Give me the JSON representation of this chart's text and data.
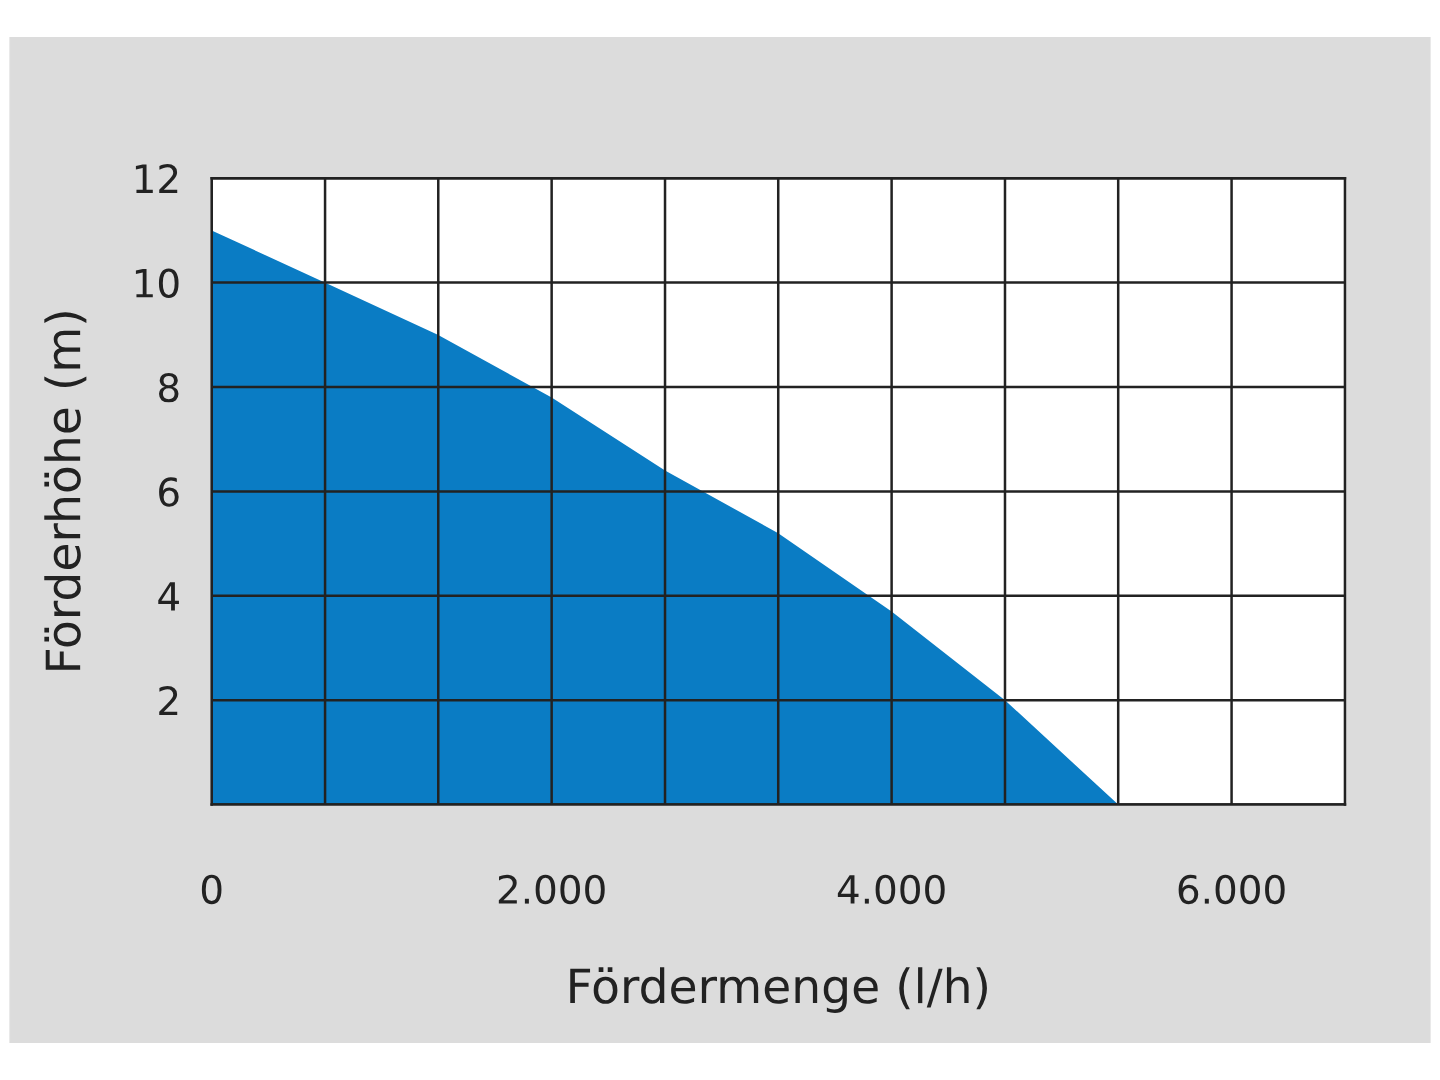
{
  "chart_data": {
    "type": "area",
    "xlabel": "Fördermenge (l/h)",
    "ylabel": "Förderhöhe (m)",
    "x": [
      0,
      665,
      1330,
      2000,
      2667,
      3333,
      4000,
      4667,
      5333
    ],
    "series": [
      {
        "color": "#0a7cc4",
        "values": [
          11,
          10,
          9,
          7.8,
          6.4,
          5.2,
          3.7,
          2,
          0
        ]
      }
    ],
    "xlim": [
      0,
      6667
    ],
    "ylim": [
      0,
      12
    ],
    "xticks": [
      {
        "value": 0,
        "label": "0"
      },
      {
        "value": 667,
        "label": null
      },
      {
        "value": 1333,
        "label": null
      },
      {
        "value": 2000,
        "label": "2.000"
      },
      {
        "value": 2667,
        "label": null
      },
      {
        "value": 3333,
        "label": null
      },
      {
        "value": 4000,
        "label": "4.000"
      },
      {
        "value": 4667,
        "label": null
      },
      {
        "value": 5333,
        "label": null
      },
      {
        "value": 6000,
        "label": "6.000"
      }
    ],
    "yticks": [
      {
        "value": 0,
        "label": null
      },
      2,
      4,
      6,
      8,
      10,
      12
    ],
    "grid": true,
    "legend": false
  }
}
